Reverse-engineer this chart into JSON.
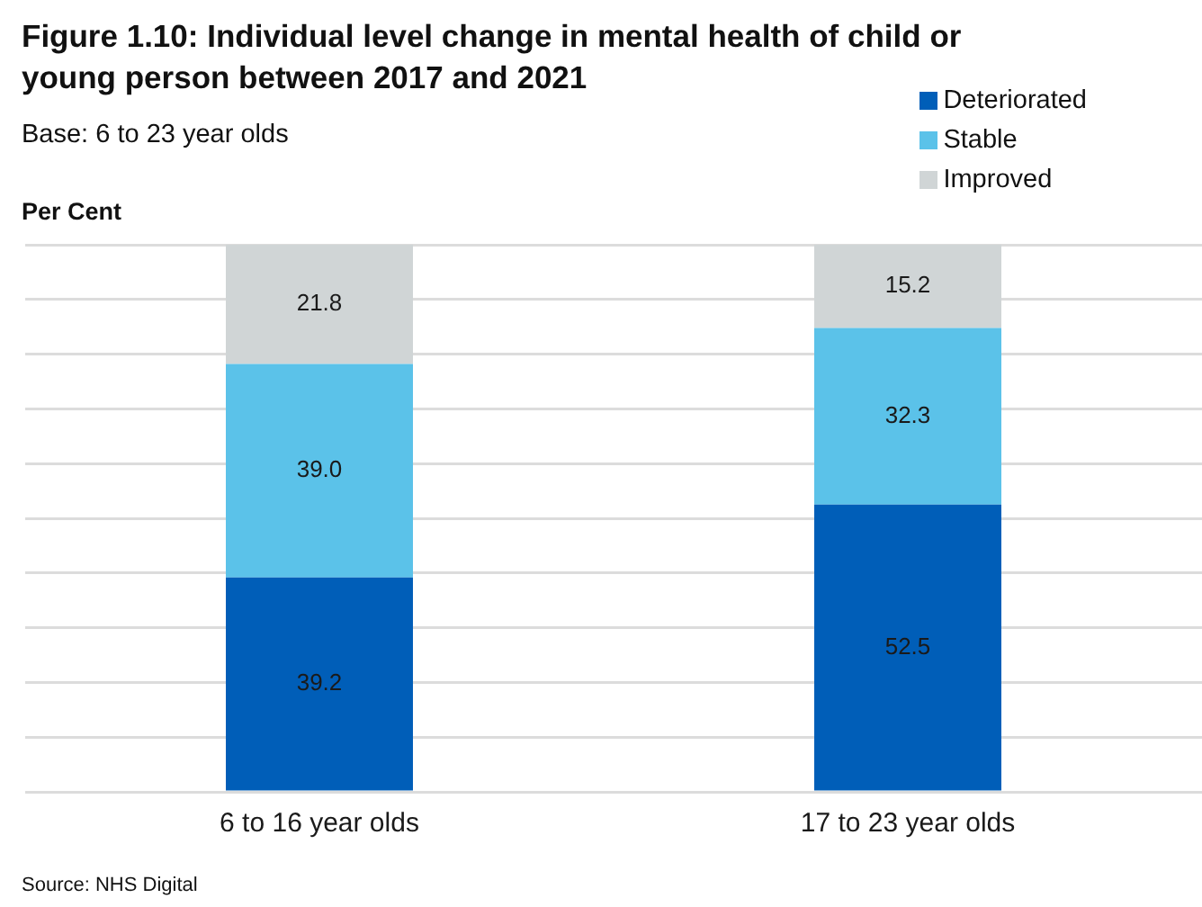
{
  "chart_data": {
    "type": "bar",
    "title": "Figure 1.10: Individual level change in mental health of child or young person between 2017 and 2021",
    "subtitle": "Base: 6 to 23 year olds",
    "ylabel": "Per Cent",
    "categories": [
      "6 to 16 year olds",
      "17 to 23 year olds"
    ],
    "series": [
      {
        "name": "Deteriorated",
        "color": "#005eb8",
        "values": [
          39.2,
          52.5
        ],
        "value_labels": [
          "39.2",
          "52.5"
        ]
      },
      {
        "name": "Stable",
        "color": "#5bc2e9",
        "values": [
          39.0,
          32.3
        ],
        "value_labels": [
          "39.0",
          "32.3"
        ]
      },
      {
        "name": "Improved",
        "color": "#d0d5d6",
        "values": [
          21.8,
          15.2
        ],
        "value_labels": [
          "21.8",
          "15.2"
        ]
      }
    ],
    "stacked": true,
    "ylim": [
      0,
      100
    ],
    "yticks": [
      {
        "value": 0,
        "label": null
      },
      {
        "value": 10,
        "label": null
      },
      {
        "value": 20,
        "label": null
      },
      {
        "value": 30,
        "label": null
      },
      {
        "value": 40,
        "label": null
      },
      {
        "value": 50,
        "label": null
      },
      {
        "value": 60,
        "label": null
      },
      {
        "value": 70,
        "label": null
      },
      {
        "value": 80,
        "label": null
      },
      {
        "value": 90,
        "label": null
      },
      {
        "value": 100,
        "label": null
      }
    ],
    "grid": "y",
    "legend": "top right",
    "tick_labels": "x",
    "annotations": [
      "Source: NHS Digital"
    ]
  }
}
